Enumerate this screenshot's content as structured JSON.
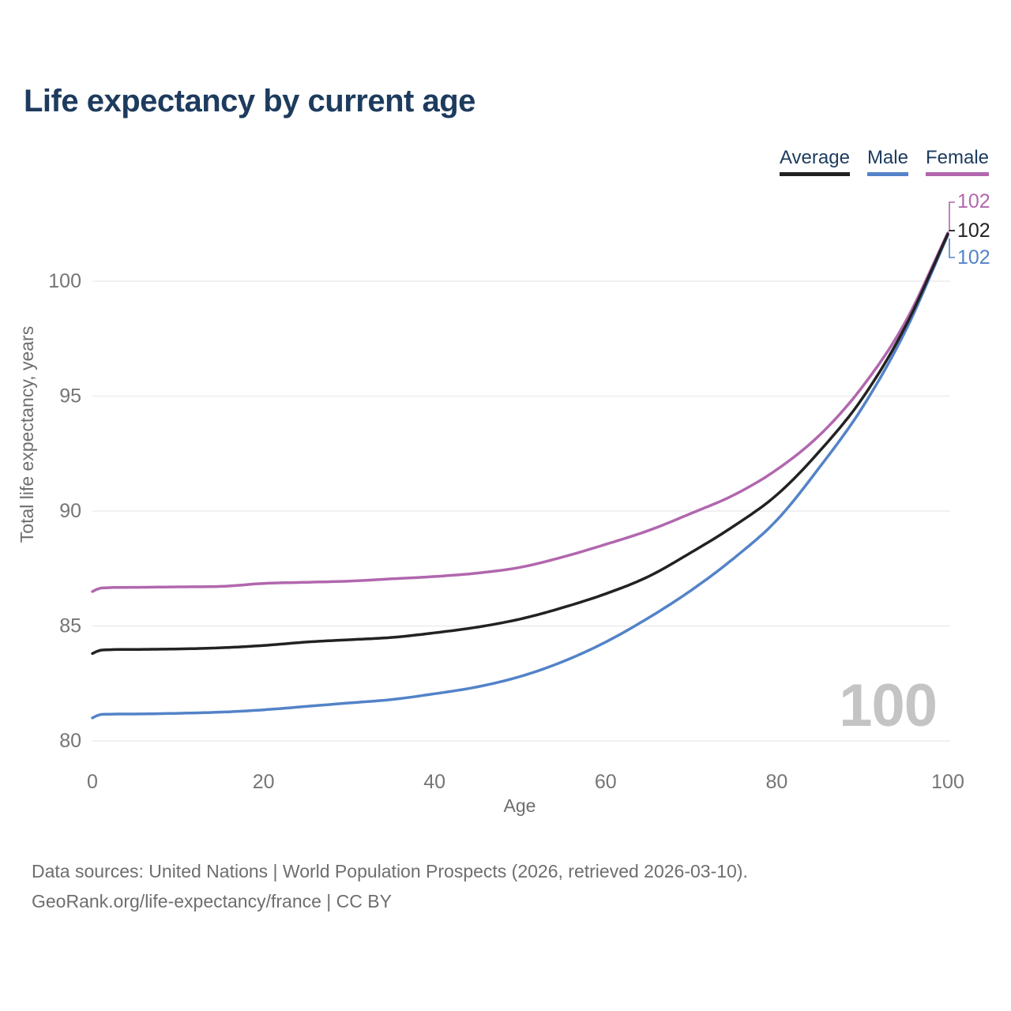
{
  "title": "Life expectancy by current age",
  "legend": [
    {
      "label": "Average",
      "color": "#222222"
    },
    {
      "label": "Male",
      "color": "#5383c8"
    },
    {
      "label": "Female",
      "color": "#b167ae"
    }
  ],
  "end_labels": {
    "female": "102",
    "average": "102",
    "male": "102"
  },
  "watermark": "100",
  "footer": {
    "line1": "Data sources: United Nations | World Population Prospects (2026, retrieved 2026-03-10).",
    "line2": "GeoRank.org/life-expectancy/france | CC BY"
  },
  "colors": {
    "title_text": "#1d3b5e",
    "axis_text": "#757575",
    "gridline": "#ececec",
    "footer_text": "#6e6e6e",
    "watermark": "#c4c4c4"
  },
  "chart_data": {
    "type": "line",
    "title": "Life expectancy by current age",
    "xlabel": "Age",
    "ylabel": "Total life expectancy, years",
    "x": [
      0,
      1,
      5,
      10,
      15,
      20,
      25,
      30,
      35,
      40,
      45,
      50,
      55,
      60,
      65,
      70,
      75,
      80,
      85,
      90,
      95,
      100
    ],
    "series": [
      {
        "name": "Average",
        "color": "#222222",
        "values": [
          83.8,
          83.95,
          83.98,
          84.0,
          84.05,
          84.15,
          84.3,
          84.4,
          84.5,
          84.7,
          84.95,
          85.3,
          85.8,
          86.4,
          87.15,
          88.2,
          89.35,
          90.7,
          92.6,
          94.9,
          98.0,
          102.05
        ]
      },
      {
        "name": "Male",
        "color": "#5383c8",
        "values": [
          81.0,
          81.15,
          81.17,
          81.2,
          81.25,
          81.35,
          81.5,
          81.65,
          81.8,
          82.05,
          82.35,
          82.8,
          83.45,
          84.3,
          85.35,
          86.55,
          87.95,
          89.6,
          91.9,
          94.5,
          97.8,
          102.0
        ]
      },
      {
        "name": "Female",
        "color": "#b167ae",
        "values": [
          86.5,
          86.65,
          86.68,
          86.7,
          86.72,
          86.85,
          86.9,
          86.95,
          87.05,
          87.15,
          87.3,
          87.55,
          88.0,
          88.55,
          89.15,
          89.9,
          90.7,
          91.8,
          93.3,
          95.4,
          98.2,
          102.1
        ]
      }
    ],
    "xlim": [
      0,
      100
    ],
    "ylim": [
      80,
      102.5
    ],
    "xticks": [
      0,
      20,
      40,
      60,
      80,
      100
    ],
    "yticks": [
      80,
      85,
      90,
      95,
      100
    ],
    "grid": true,
    "legend_position": "top-right"
  }
}
